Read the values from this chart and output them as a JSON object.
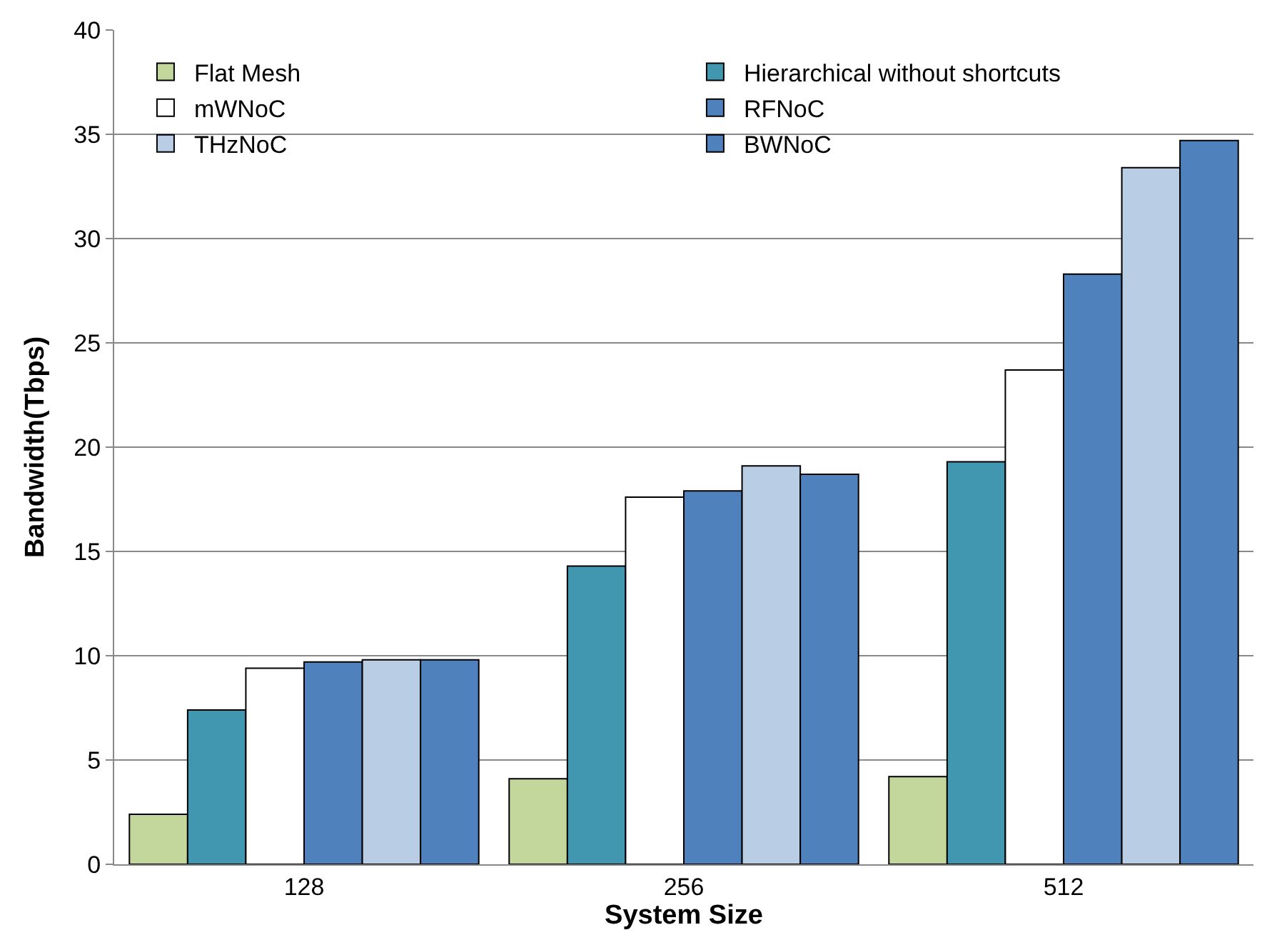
{
  "chart_data": {
    "type": "bar",
    "xlabel": "System Size",
    "ylabel": "Bandwidth(Tbps)",
    "categories": [
      "128",
      "256",
      "512"
    ],
    "series": [
      {
        "name": "Flat Mesh",
        "color": "#c3d69b",
        "values": [
          2.4,
          4.1,
          4.2
        ]
      },
      {
        "name": "Hierarchical without shortcuts",
        "color": "#4196b0",
        "values": [
          7.4,
          14.3,
          19.3
        ]
      },
      {
        "name": "mWNoC",
        "color": "#ffffff",
        "values": [
          9.4,
          17.6,
          23.7
        ]
      },
      {
        "name": "RFNoC",
        "color": "#4f81bd",
        "values": [
          9.7,
          17.9,
          28.3
        ]
      },
      {
        "name": "THzNoC",
        "color": "#b9cde5",
        "values": [
          9.8,
          19.1,
          33.4
        ]
      },
      {
        "name": "BWNoC",
        "color": "#4f81bd",
        "values": [
          9.8,
          18.7,
          34.7
        ]
      }
    ],
    "ylim": [
      0,
      40
    ],
    "yticks": [
      0,
      5,
      10,
      15,
      20,
      25,
      30,
      35,
      40
    ],
    "grid": "y",
    "legend": "top left"
  }
}
